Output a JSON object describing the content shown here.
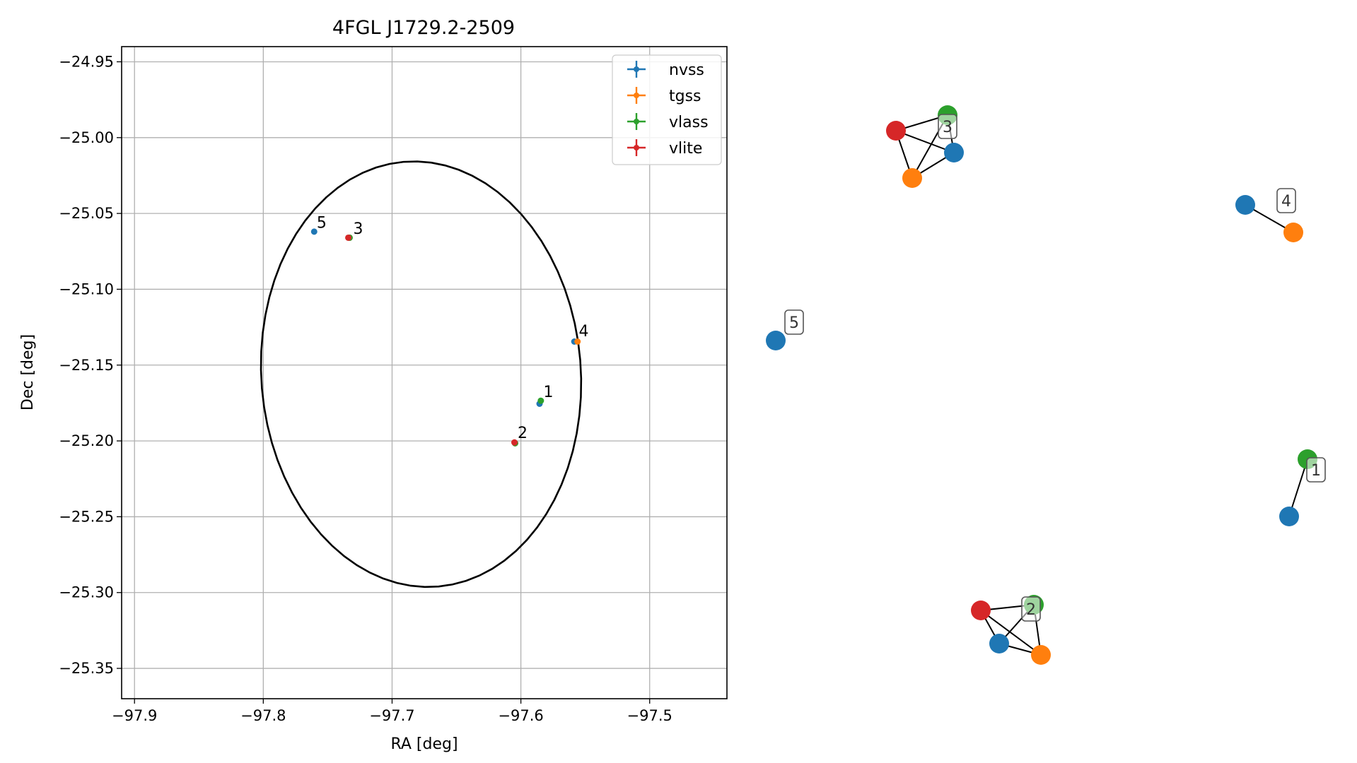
{
  "colors": {
    "nvss": "#1f77b4",
    "tgss": "#ff7f0e",
    "vlass": "#2ca02c",
    "vlite": "#d62728",
    "grid": "#b0b0b0",
    "ellipse": "#000000"
  },
  "chart_data": [
    {
      "type": "scatter",
      "title": "4FGL J1729.2-2509",
      "xlabel": "RA [deg]",
      "ylabel": "Dec [deg]",
      "xlim": [
        -97.91,
        -97.44
      ],
      "ylim": [
        -25.37,
        -24.94
      ],
      "xticks": [
        -97.9,
        -97.8,
        -97.7,
        -97.6,
        -97.5
      ],
      "xtick_labels": [
        "−97.9",
        "−97.8",
        "−97.7",
        "−97.6",
        "−97.5"
      ],
      "yticks": [
        -24.95,
        -25.0,
        -25.05,
        -25.1,
        -25.15,
        -25.2,
        -25.25,
        -25.3,
        -25.35
      ],
      "ytick_labels": [
        "−24.95",
        "−25.00",
        "−25.05",
        "−25.10",
        "−25.15",
        "−25.20",
        "−25.25",
        "−25.30",
        "−25.35"
      ],
      "grid": true,
      "legend_position": "top-right",
      "series": [
        {
          "name": "nvss",
          "color_key": "nvss",
          "points": [
            {
              "x": -97.5855,
              "y": -25.1755
            },
            {
              "x": -97.6045,
              "y": -25.2015
            },
            {
              "x": -97.733,
              "y": -25.066
            },
            {
              "x": -97.5585,
              "y": -25.1345
            },
            {
              "x": -97.7605,
              "y": -25.062
            }
          ]
        },
        {
          "name": "tgss",
          "color_key": "tgss",
          "points": [
            {
              "x": -97.6045,
              "y": -25.2015
            },
            {
              "x": -97.733,
              "y": -25.066
            },
            {
              "x": -97.556,
              "y": -25.1345
            }
          ]
        },
        {
          "name": "vlass",
          "color_key": "vlass",
          "points": [
            {
              "x": -97.5845,
              "y": -25.1735
            },
            {
              "x": -97.6045,
              "y": -25.2015
            },
            {
              "x": -97.733,
              "y": -25.066
            }
          ]
        },
        {
          "name": "vlite",
          "color_key": "vlite",
          "points": [
            {
              "x": -97.605,
              "y": -25.201
            },
            {
              "x": -97.734,
              "y": -25.066
            }
          ]
        }
      ],
      "ellipse": {
        "center_x": -97.6775,
        "center_y": -25.156,
        "semi_x": 0.1238,
        "semi_y": 0.1408,
        "angle_deg": 10
      },
      "annotations": [
        {
          "text": "1",
          "x": -97.5825,
          "y": -25.171
        },
        {
          "text": "2",
          "x": -97.6025,
          "y": -25.198
        },
        {
          "text": "3",
          "x": -97.7302,
          "y": -25.0635
        },
        {
          "text": "4",
          "x": -97.555,
          "y": -25.131
        },
        {
          "text": "5",
          "x": -97.7585,
          "y": -25.0595
        }
      ]
    },
    {
      "type": "network",
      "nodes": [
        {
          "id": "3-nvss",
          "color_key": "nvss"
        },
        {
          "id": "3-tgss",
          "color_key": "tgss"
        },
        {
          "id": "3-vlass",
          "color_key": "vlass"
        },
        {
          "id": "3-vlite",
          "color_key": "vlite"
        },
        {
          "id": "4-nvss",
          "color_key": "nvss"
        },
        {
          "id": "4-tgss",
          "color_key": "tgss"
        },
        {
          "id": "5-nvss",
          "color_key": "nvss"
        },
        {
          "id": "1-vlass",
          "color_key": "vlass"
        },
        {
          "id": "1-nvss",
          "color_key": "nvss"
        },
        {
          "id": "2-vlass",
          "color_key": "vlass"
        },
        {
          "id": "2-vlite",
          "color_key": "vlite"
        },
        {
          "id": "2-nvss",
          "color_key": "nvss"
        },
        {
          "id": "2-tgss",
          "color_key": "tgss"
        }
      ],
      "edges": [
        [
          "3-vlite",
          "3-vlass"
        ],
        [
          "3-vlite",
          "3-nvss"
        ],
        [
          "3-vlite",
          "3-tgss"
        ],
        [
          "3-vlass",
          "3-nvss"
        ],
        [
          "3-vlass",
          "3-tgss"
        ],
        [
          "3-nvss",
          "3-tgss"
        ],
        [
          "4-nvss",
          "4-tgss"
        ],
        [
          "1-vlass",
          "1-nvss"
        ],
        [
          "2-vlite",
          "2-vlass"
        ],
        [
          "2-vlite",
          "2-nvss"
        ],
        [
          "2-vlite",
          "2-tgss"
        ],
        [
          "2-vlass",
          "2-nvss"
        ],
        [
          "2-vlass",
          "2-tgss"
        ],
        [
          "2-nvss",
          "2-tgss"
        ]
      ],
      "labels": [
        {
          "text": "3",
          "anchor": "3-vlass"
        },
        {
          "text": "4",
          "anchor": "4-nvss"
        },
        {
          "text": "5",
          "anchor": "5-nvss"
        },
        {
          "text": "1",
          "anchor": "1-vlass"
        },
        {
          "text": "2",
          "anchor": "2-vlass"
        }
      ]
    }
  ]
}
